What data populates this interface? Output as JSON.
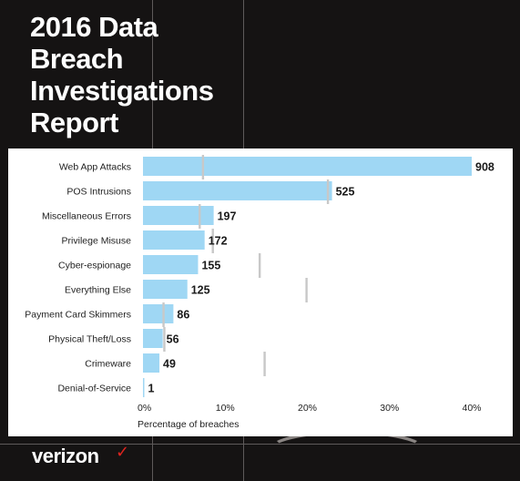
{
  "report": {
    "title": "2016 Data\nBreach\nInvestigations\nReport",
    "brand": "verizon",
    "brand_mark": "✓"
  },
  "colors": {
    "background": "#151313",
    "bar": "#9fd7f4",
    "marker": "#c8c8c8",
    "brand_check": "#e0241f"
  },
  "chart_data": {
    "type": "bar",
    "orientation": "horizontal",
    "categories": [
      "Web App Attacks",
      "POS Intrusions",
      "Miscellaneous Errors",
      "Privilege Misuse",
      "Cyber-espionage",
      "Everything Else",
      "Payment Card Skimmers",
      "Physical Theft/Loss",
      "Crimeware",
      "Denial-of-Service"
    ],
    "values": [
      40.0,
      23.0,
      8.6,
      7.5,
      6.7,
      5.4,
      3.7,
      2.4,
      2.0,
      0.04
    ],
    "data_labels": [
      "908",
      "525",
      "197",
      "172",
      "155",
      "125",
      "86",
      "56",
      "49",
      "1"
    ],
    "markers": [
      7.3,
      22.5,
      6.9,
      8.5,
      14.2,
      19.9,
      2.5,
      2.6,
      14.8,
      null
    ],
    "xlabel": "Percentage of breaches",
    "xlim": [
      0,
      40
    ],
    "xticks": [
      0,
      10,
      20,
      30,
      40
    ],
    "xtick_labels": [
      "0%",
      "10%",
      "20%",
      "30%",
      "40%"
    ],
    "grid": false,
    "legend": "none"
  }
}
